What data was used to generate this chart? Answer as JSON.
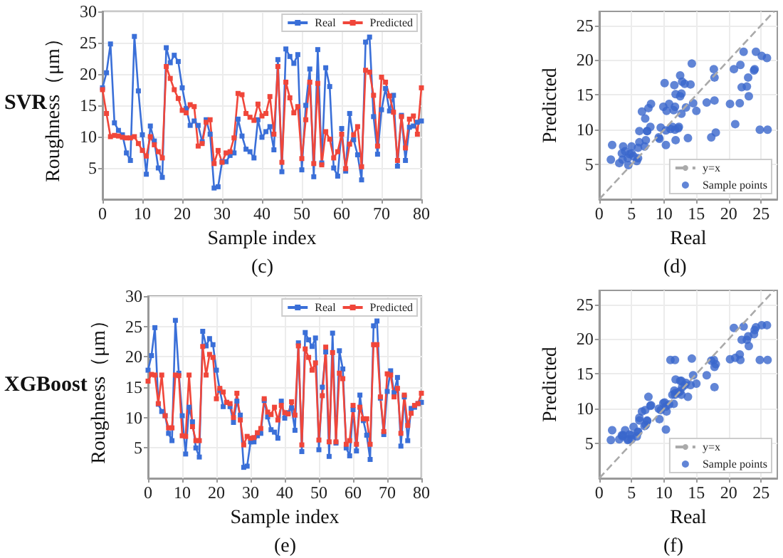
{
  "chart_data": [
    {
      "type": "line",
      "title": "SVR",
      "xlabel": "Sample index",
      "ylabel": "Roughness（μm）",
      "annotations": [
        "(c)"
      ],
      "x": [
        0,
        1,
        2,
        3,
        4,
        5,
        6,
        7,
        8,
        9,
        10,
        11,
        12,
        13,
        14,
        15,
        16,
        17,
        18,
        19,
        20,
        21,
        22,
        23,
        24,
        25,
        26,
        27,
        28,
        29,
        30,
        31,
        32,
        33,
        34,
        35,
        36,
        37,
        38,
        39,
        40,
        41,
        42,
        43,
        44,
        45,
        46,
        47,
        48,
        49,
        50,
        51,
        52,
        53,
        54,
        55,
        56,
        57,
        58,
        59,
        60,
        61,
        62,
        63,
        64,
        65,
        66,
        67,
        68,
        69,
        70,
        71,
        72,
        73,
        74,
        75,
        76,
        77,
        78,
        79,
        80
      ],
      "xlim": [
        0,
        80
      ],
      "xticks": [
        0,
        10,
        20,
        30,
        40,
        50,
        60,
        70,
        80
      ],
      "ylim": [
        0,
        30
      ],
      "yticks": [
        5,
        10,
        15,
        20,
        25,
        30
      ],
      "grid": true,
      "legend": "top right",
      "marker": "square",
      "series": [
        {
          "name": "Real",
          "color": "#3a6fd8",
          "values": [
            17.8,
            20.2,
            24.8,
            12.2,
            11,
            10.3,
            7.4,
            6.2,
            26,
            17.3,
            10.3,
            4.0,
            11.7,
            9.3,
            5.0,
            3.5,
            24.2,
            21.8,
            23,
            22,
            17.8,
            14.5,
            11.8,
            12.5,
            11.8,
            9.2,
            12.7,
            10.4,
            1.8,
            2.0,
            6.0,
            6.0,
            7.0,
            7.4,
            12.8,
            10.1,
            8.0,
            7.6,
            6.6,
            12.7,
            9.9,
            10.8,
            11.6,
            7.9,
            22.3,
            4.4,
            24,
            22.8,
            21.7,
            23.1,
            4.7,
            15,
            20.8,
            3.6,
            23.9,
            5.8,
            21,
            18,
            5,
            3.7,
            11.3,
            4.5,
            13.7,
            9.5,
            7.1,
            3.1,
            25.1,
            25.9,
            13.2,
            7.2,
            14.3,
            17.7,
            14.1,
            16.6,
            5.3,
            13.4,
            6.2,
            11.5,
            11.7,
            12.3,
            12.5
          ]
        },
        {
          "name": "Predicted",
          "color": "#f0463a",
          "values": [
            17.5,
            13.7,
            10,
            10.2,
            10.1,
            9.9,
            9.8,
            9.8,
            10,
            8.9,
            7.8,
            6.9,
            10,
            8.7,
            7.6,
            6.6,
            21.2,
            19.3,
            17.5,
            16.1,
            14.2,
            13.8,
            15.1,
            14.8,
            8.5,
            8.9,
            12.3,
            12.7,
            5.7,
            7.8,
            5.9,
            7.4,
            7.6,
            9.8,
            16.9,
            16.7,
            13.7,
            13.1,
            12.6,
            15.2,
            13.3,
            13.7,
            16.4,
            10.4,
            21.2,
            5.9,
            18.7,
            16.2,
            13.8,
            14.8,
            6.5,
            12.7,
            18.7,
            5.7,
            18.5,
            5.5,
            10.8,
            9.6,
            6.6,
            7.6,
            10.4,
            4.9,
            8.8,
            10.3,
            11.6,
            5.2,
            20.6,
            20.3,
            16.6,
            8.5,
            19.5,
            18.7,
            16.5,
            13.9,
            6.2,
            13.2,
            8.2,
            12.8,
            13.3,
            10.4,
            17.8
          ]
        }
      ]
    },
    {
      "type": "scatter",
      "xlabel": "Real",
      "ylabel": "Predicted",
      "annotations": [
        "(d)"
      ],
      "xlim": [
        0,
        27.5
      ],
      "xticks": [
        0,
        5,
        10,
        15,
        20,
        25
      ],
      "ylim": [
        0,
        27
      ],
      "yticks": [
        5,
        10,
        15,
        20,
        25
      ],
      "grid": true,
      "legend": "bottom right",
      "series": [
        {
          "name": "y=x",
          "type": "line",
          "color": "#aaaaaa",
          "line_style": "dashed",
          "marker": "none",
          "x": [
            0,
            27
          ],
          "values": [
            0,
            27
          ]
        },
        {
          "name": "Sample points",
          "color": "#3a66cc",
          "marker": "circle",
          "x": [
            17.8,
            20.2,
            24.8,
            12.2,
            11,
            10.3,
            7.4,
            6.2,
            26,
            17.3,
            10.3,
            4.0,
            11.7,
            9.3,
            5.0,
            3.5,
            24.2,
            21.8,
            23,
            22,
            17.8,
            14.5,
            11.8,
            12.5,
            11.8,
            9.2,
            12.7,
            10.4,
            1.8,
            2.0,
            6.0,
            6.0,
            7.0,
            7.4,
            12.8,
            10.1,
            8.0,
            7.6,
            6.6,
            12.7,
            9.9,
            10.8,
            11.6,
            7.9,
            22.3,
            4.4,
            24,
            22.8,
            21.7,
            23.1,
            4.7,
            15,
            20.8,
            3.6,
            23.9,
            5.8,
            21,
            18,
            5,
            3.7,
            11.3,
            4.5,
            13.7,
            9.5,
            7.1,
            3.1,
            25.1,
            25.9,
            13.2,
            7.2,
            14.3,
            17.7,
            14.1,
            16.6,
            5.3,
            13.4,
            6.2,
            11.5,
            11.7,
            12.3,
            12.5
          ],
          "values": [
            17.5,
            13.7,
            10,
            10.2,
            10.1,
            9.9,
            9.8,
            9.8,
            10,
            8.9,
            7.8,
            6.9,
            10,
            8.7,
            7.6,
            6.6,
            21.2,
            19.3,
            17.5,
            16.1,
            14.2,
            13.8,
            15.1,
            14.8,
            8.5,
            8.9,
            12.3,
            12.7,
            5.7,
            7.8,
            5.9,
            7.4,
            7.6,
            9.8,
            16.9,
            16.7,
            13.7,
            13.1,
            12.6,
            15.2,
            13.3,
            13.7,
            16.4,
            10.4,
            21.2,
            5.9,
            18.7,
            16.2,
            13.8,
            14.8,
            6.5,
            12.7,
            18.7,
            5.7,
            18.5,
            5.5,
            10.8,
            9.6,
            6.6,
            7.6,
            10.4,
            4.9,
            8.8,
            10.3,
            11.6,
            5.2,
            20.6,
            20.3,
            16.6,
            8.5,
            19.5,
            18.7,
            16.5,
            13.9,
            6.2,
            13.2,
            8.2,
            12.8,
            13.3,
            10.4,
            17.8
          ]
        }
      ]
    },
    {
      "type": "line",
      "title": "XGBoost",
      "xlabel": "Sample index",
      "ylabel": "Roughness（μm）",
      "annotations": [
        "(e)"
      ],
      "x": [
        0,
        1,
        2,
        3,
        4,
        5,
        6,
        7,
        8,
        9,
        10,
        11,
        12,
        13,
        14,
        15,
        16,
        17,
        18,
        19,
        20,
        21,
        22,
        23,
        24,
        25,
        26,
        27,
        28,
        29,
        30,
        31,
        32,
        33,
        34,
        35,
        36,
        37,
        38,
        39,
        40,
        41,
        42,
        43,
        44,
        45,
        46,
        47,
        48,
        49,
        50,
        51,
        52,
        53,
        54,
        55,
        56,
        57,
        58,
        59,
        60,
        61,
        62,
        63,
        64,
        65,
        66,
        67,
        68,
        69,
        70,
        71,
        72,
        73,
        74,
        75,
        76,
        77,
        78,
        79,
        80
      ],
      "xlim": [
        0,
        80
      ],
      "xticks": [
        0,
        10,
        20,
        30,
        40,
        50,
        60,
        70,
        80
      ],
      "ylim": [
        0,
        30
      ],
      "yticks": [
        5,
        10,
        15,
        20,
        25,
        30
      ],
      "grid": true,
      "legend": "top right",
      "marker": "square",
      "series": [
        {
          "name": "Real",
          "color": "#3a6fd8",
          "values": [
            17.8,
            20.2,
            24.8,
            12.2,
            11,
            10.3,
            7.4,
            6.2,
            26,
            17.3,
            10.3,
            4.0,
            11.7,
            9.3,
            5.0,
            3.5,
            24.2,
            21.8,
            23,
            22,
            17.8,
            14.5,
            11.8,
            12.5,
            11.8,
            9.2,
            12.7,
            10.4,
            1.8,
            2.0,
            6.0,
            6.0,
            7.0,
            7.4,
            12.8,
            10.1,
            8.0,
            7.6,
            6.6,
            12.7,
            9.9,
            10.8,
            11.6,
            7.9,
            22.3,
            4.4,
            24,
            22.8,
            21.7,
            23.1,
            4.7,
            15,
            20.8,
            3.6,
            23.9,
            5.8,
            21,
            18,
            5,
            3.7,
            11.3,
            4.5,
            13.7,
            9.5,
            7.1,
            3.1,
            25.1,
            25.9,
            13.2,
            7.2,
            14.3,
            17.7,
            14.1,
            16.6,
            5.3,
            13.4,
            6.2,
            11.5,
            11.7,
            12.3,
            12.5
          ]
        },
        {
          "name": "Predicted",
          "color": "#f0463a",
          "values": [
            16,
            17.1,
            17,
            12.3,
            17,
            10.3,
            8.3,
            8.3,
            17,
            16.9,
            7,
            6.9,
            17,
            8.5,
            6.2,
            6.2,
            21.7,
            17,
            20.4,
            19.9,
            13.1,
            14.8,
            14.2,
            12.5,
            12.3,
            10,
            14,
            9.6,
            5.5,
            6.9,
            6.6,
            6.7,
            7.5,
            8.2,
            13.1,
            10.9,
            10.5,
            11.7,
            9.6,
            12,
            10.8,
            10.6,
            12.6,
            10.4,
            21.8,
            5.5,
            21.3,
            19.9,
            17.8,
            19,
            6.3,
            13.6,
            21.6,
            6,
            20.7,
            6,
            17.3,
            16.4,
            5.6,
            6.2,
            12,
            5.6,
            11.7,
            9.8,
            9.8,
            5.6,
            22,
            22,
            13.4,
            7.7,
            17.2,
            17,
            13.4,
            14.8,
            7.4,
            13.7,
            8.7,
            10.7,
            12,
            12.3,
            14
          ]
        }
      ]
    },
    {
      "type": "scatter",
      "xlabel": "Real",
      "ylabel": "Predicted",
      "annotations": [
        "(f)"
      ],
      "xlim": [
        0,
        27.5
      ],
      "xticks": [
        0,
        5,
        10,
        15,
        20,
        25
      ],
      "ylim": [
        0,
        27
      ],
      "yticks": [
        5,
        10,
        15,
        20,
        25
      ],
      "grid": true,
      "legend": "bottom right",
      "series": [
        {
          "name": "y=x",
          "type": "line",
          "color": "#aaaaaa",
          "line_style": "dashed",
          "marker": "none",
          "x": [
            0,
            27
          ],
          "values": [
            0,
            27
          ]
        },
        {
          "name": "Sample points",
          "color": "#3a66cc",
          "marker": "circle",
          "x": [
            17.8,
            20.2,
            24.8,
            12.2,
            11,
            10.3,
            7.4,
            6.2,
            26,
            17.3,
            10.3,
            4.0,
            11.7,
            9.3,
            5.0,
            3.5,
            24.2,
            21.8,
            23,
            22,
            17.8,
            14.5,
            11.8,
            12.5,
            11.8,
            9.2,
            12.7,
            10.4,
            1.8,
            2.0,
            6.0,
            6.0,
            7.0,
            7.4,
            12.8,
            10.1,
            8.0,
            7.6,
            6.6,
            12.7,
            9.9,
            10.8,
            11.6,
            7.9,
            22.3,
            4.4,
            24,
            22.8,
            21.7,
            23.1,
            4.7,
            15,
            20.8,
            3.6,
            23.9,
            5.8,
            21,
            18,
            5,
            3.7,
            11.3,
            4.5,
            13.7,
            9.5,
            7.1,
            3.1,
            25.1,
            25.9,
            13.2,
            7.2,
            14.3,
            17.7,
            14.1,
            16.6,
            5.3,
            13.4,
            6.2,
            11.5,
            11.7,
            12.3,
            12.5
          ],
          "values": [
            16,
            17.1,
            17,
            12.3,
            17,
            10.3,
            8.3,
            8.3,
            17,
            16.9,
            7,
            6.9,
            17,
            8.5,
            6.2,
            6.2,
            21.7,
            17,
            20.4,
            19.9,
            13.1,
            14.8,
            14.2,
            12.5,
            12.3,
            10,
            14,
            9.6,
            5.5,
            6.9,
            6.6,
            6.7,
            7.5,
            8.2,
            13.1,
            10.9,
            10.5,
            11.7,
            9.6,
            12,
            10.8,
            10.6,
            12.6,
            10.4,
            21.8,
            5.5,
            21.3,
            19.9,
            17.8,
            19,
            6.3,
            13.6,
            21.6,
            6,
            20.7,
            6,
            17.3,
            16.4,
            5.6,
            6.2,
            12,
            5.6,
            11.7,
            9.8,
            9.8,
            5.6,
            22,
            22,
            13.4,
            7.7,
            17.2,
            17,
            13.4,
            14.8,
            7.4,
            13.7,
            8.7,
            10.7,
            12,
            null,
            14
          ]
        }
      ]
    }
  ]
}
